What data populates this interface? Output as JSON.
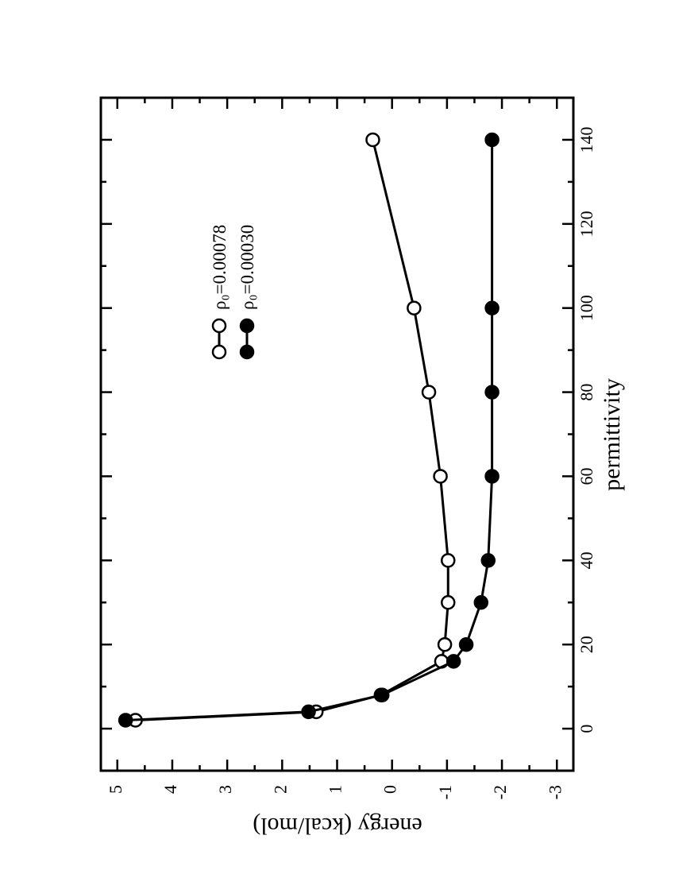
{
  "chart_data": {
    "type": "line",
    "orientation": "rotated 90 degrees clockwise",
    "xlabel": "permittivity",
    "ylabel": "energy (kcal/mol)",
    "xlim": [
      -10,
      150
    ],
    "ylim": [
      -3.3,
      5.3
    ],
    "x_ticks": [
      0,
      20,
      40,
      60,
      80,
      100,
      120,
      140
    ],
    "y_ticks": [
      5,
      4,
      3,
      2,
      1,
      0,
      -1,
      -2,
      -3
    ],
    "x_tick_labels": [
      "0",
      "20",
      "40",
      "60",
      "80",
      "100",
      "120",
      "140"
    ],
    "y_tick_labels": [
      "5",
      "4",
      "3",
      "2",
      "1",
      "0",
      "-1",
      "-2",
      "-3"
    ],
    "legend_position": "upper right",
    "series": [
      {
        "name": "ρ₀=0.00078",
        "marker": "open-circle",
        "x": [
          2,
          4,
          8,
          16,
          20,
          30,
          40,
          60,
          80,
          100,
          140
        ],
        "y": [
          4.67,
          1.38,
          0.2,
          -0.9,
          -0.96,
          -1.02,
          -1.02,
          -0.88,
          -0.67,
          -0.4,
          0.35
        ]
      },
      {
        "name": "ρ₀=0.00030",
        "marker": "filled-circle",
        "x": [
          2,
          4,
          8,
          16,
          20,
          30,
          40,
          60,
          80,
          100,
          140
        ],
        "y": [
          4.85,
          1.52,
          0.18,
          -1.12,
          -1.35,
          -1.62,
          -1.75,
          -1.82,
          -1.82,
          -1.82,
          -1.82
        ]
      }
    ]
  }
}
